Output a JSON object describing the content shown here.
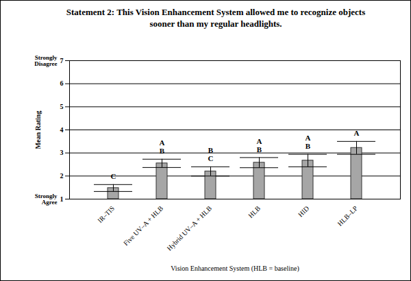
{
  "chart_data": {
    "type": "bar",
    "title": "Statement 2:  This Vision Enhancement System allowed me to recognize objects sooner than my regular headlights.",
    "categories": [
      "IR–TIS",
      "Five UV–A + HLB",
      "Hybrid UV–A + HLB",
      "HLB",
      "HID",
      "HLB–LP"
    ],
    "values": [
      1.48,
      2.55,
      2.2,
      2.58,
      2.67,
      3.22
    ],
    "errors": [
      0.15,
      0.18,
      0.2,
      0.22,
      0.27,
      0.28
    ],
    "group_letters": [
      [
        "C"
      ],
      [
        "A",
        "B"
      ],
      [
        "B",
        "C"
      ],
      [
        "A",
        "B"
      ],
      [
        "A",
        "B"
      ],
      [
        "A"
      ]
    ],
    "color": "#a6a6a6",
    "xlabel": "Vision Enhancement System (HLB = baseline)",
    "ylabel": "Mean Rating",
    "ylim": [
      1,
      7
    ],
    "yticks": [
      1,
      2,
      3,
      4,
      5,
      6,
      7
    ],
    "grid": true,
    "annotations": [
      {
        "text": "Strongly Disagree",
        "y": 7
      },
      {
        "text": "Strongly Agree",
        "y": 1
      }
    ]
  }
}
